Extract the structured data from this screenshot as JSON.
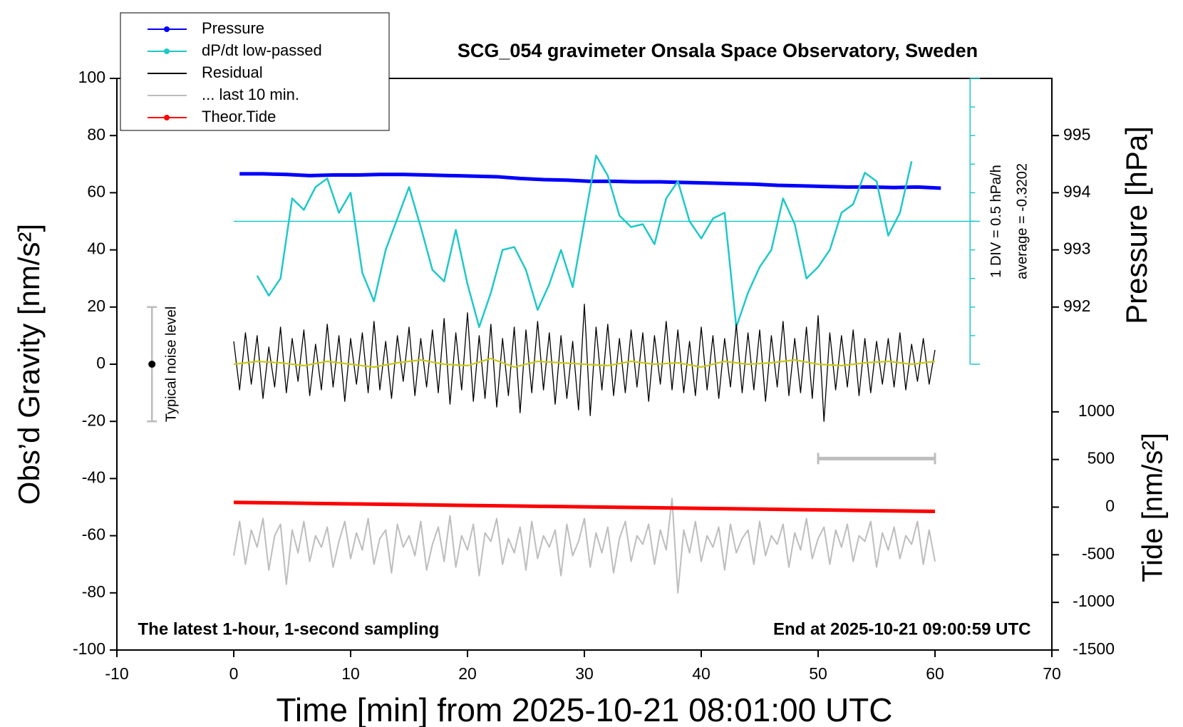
{
  "chart_data": {
    "type": "line",
    "title": "SCG_054 gravimeter Onsala Space Observatory, Sweden",
    "xlabel": "Time [min] from 2025-10-21 08:01:00 UTC",
    "ylabel": "Obs’d Gravity [nm/s²]",
    "y2label": "Pressure [hPa]",
    "y3label": "Tide [nm/s²]",
    "annotations": {
      "left": "The latest 1-hour, 1-second sampling",
      "right": "End at 2025-10-21 09:00:59 UTC",
      "noise": "Typical noise level",
      "div": "1 DIV = 0.5 hPa/h",
      "average": "average = -0.3202"
    },
    "xlim": [
      -10,
      70
    ],
    "xticks": [
      -10,
      0,
      10,
      20,
      30,
      40,
      50,
      60,
      70
    ],
    "ylim": [
      -100,
      100
    ],
    "yticks": [
      -100,
      -80,
      -60,
      -40,
      -20,
      0,
      20,
      40,
      60,
      80,
      100
    ],
    "y2lim": [
      986,
      996
    ],
    "y2ticks": [
      992,
      993,
      994,
      995
    ],
    "y3lim": [
      -1500,
      4500
    ],
    "y3ticks": [
      -1500,
      -1000,
      -500,
      0,
      500,
      1000
    ],
    "legend": "upper left",
    "noise_level": {
      "x": -7,
      "value": 0,
      "error": 20
    },
    "last10_bar": {
      "x": [
        50,
        60
      ],
      "y": -33
    },
    "series": [
      {
        "name": "Pressure",
        "color": "#0000ff",
        "axis": "y2",
        "marker": true,
        "x": [
          0.5,
          2.5,
          4.5,
          6.5,
          8.5,
          10.5,
          12.5,
          14.5,
          16.5,
          18.5,
          20.5,
          22.5,
          24.5,
          26.5,
          28.5,
          30.5,
          32.5,
          34.5,
          36.5,
          38.5,
          40.5,
          42.5,
          44.5,
          46.5,
          48.5,
          50.5,
          52.5,
          54.5,
          56.5,
          58.5,
          60.5
        ],
        "values": [
          994.33,
          994.33,
          994.32,
          994.3,
          994.31,
          994.31,
          994.32,
          994.32,
          994.31,
          994.3,
          994.29,
          994.28,
          994.25,
          994.23,
          994.22,
          994.2,
          994.2,
          994.19,
          994.19,
          994.18,
          994.17,
          994.16,
          994.15,
          994.13,
          994.12,
          994.11,
          994.1,
          994.1,
          994.09,
          994.1,
          994.08
        ]
      },
      {
        "name": "dP/dt low-passed",
        "color": "#1fc8c8",
        "marker": true,
        "x": [
          2,
          3,
          4,
          5,
          6,
          7,
          8,
          9,
          10,
          11,
          12,
          13,
          14,
          15,
          16,
          17,
          18,
          19,
          20,
          21,
          22,
          23,
          24,
          25,
          26,
          27,
          28,
          29,
          30,
          31,
          32,
          33,
          34,
          35,
          36,
          37,
          38,
          39,
          40,
          41,
          42,
          43,
          44,
          45,
          46,
          47,
          48,
          49,
          50,
          51,
          52,
          53,
          54,
          55,
          56,
          57,
          58
        ],
        "values": [
          31,
          24,
          30,
          58,
          54,
          62,
          65,
          53,
          60,
          32,
          22,
          40,
          51,
          62,
          48,
          33,
          29,
          47,
          28,
          13,
          25,
          40,
          41,
          33,
          19,
          28,
          40,
          27,
          50,
          73,
          66,
          52,
          48,
          49,
          42,
          58,
          64,
          50,
          44,
          51,
          53,
          13,
          25,
          34,
          40,
          58,
          49,
          30,
          34,
          40,
          53,
          56,
          67,
          64,
          45,
          53,
          71
        ]
      },
      {
        "name": "Residual",
        "color": "#000000",
        "x": [
          0,
          0.5,
          1,
          1.5,
          2,
          2.5,
          3,
          3.5,
          4,
          4.5,
          5,
          5.5,
          6,
          6.5,
          7,
          7.5,
          8,
          8.5,
          9,
          9.5,
          10,
          10.5,
          11,
          11.5,
          12,
          12.5,
          13,
          13.5,
          14,
          14.5,
          15,
          15.5,
          16,
          16.5,
          17,
          17.5,
          18,
          18.5,
          19,
          19.5,
          20,
          20.5,
          21,
          21.5,
          22,
          22.5,
          23,
          23.5,
          24,
          24.5,
          25,
          25.5,
          26,
          26.5,
          27,
          27.5,
          28,
          28.5,
          29,
          29.5,
          30,
          30.5,
          31,
          31.5,
          32,
          32.5,
          33,
          33.5,
          34,
          34.5,
          35,
          35.5,
          36,
          36.5,
          37,
          37.5,
          38,
          38.5,
          39,
          39.5,
          40,
          40.5,
          41,
          41.5,
          42,
          42.5,
          43,
          43.5,
          44,
          44.5,
          45,
          45.5,
          46,
          46.5,
          47,
          47.5,
          48,
          48.5,
          49,
          49.5,
          50,
          50.5,
          51,
          51.5,
          52,
          52.5,
          53,
          53.5,
          54,
          54.5,
          55,
          55.5,
          56,
          56.5,
          57,
          57.5,
          58,
          58.5,
          59,
          59.5,
          60
        ],
        "values": [
          8,
          -9,
          11,
          -7,
          10,
          -12,
          6,
          -8,
          13,
          -10,
          9,
          -6,
          12,
          -11,
          7,
          -9,
          14,
          -8,
          10,
          -13,
          9,
          -7,
          11,
          -10,
          15,
          -9,
          8,
          -12,
          10,
          -6,
          13,
          -11,
          9,
          -8,
          12,
          -10,
          16,
          -14,
          11,
          -9,
          18,
          -13,
          10,
          -12,
          14,
          -15,
          9,
          -11,
          13,
          -17,
          12,
          -10,
          15,
          -9,
          11,
          -14,
          10,
          -12,
          8,
          -16,
          21,
          -18,
          13,
          -9,
          14,
          -11,
          9,
          -10,
          12,
          -8,
          11,
          -13,
          10,
          -7,
          15,
          -9,
          12,
          -10,
          8,
          -11,
          13,
          -9,
          10,
          -12,
          9,
          -8,
          14,
          -10,
          11,
          -9,
          12,
          -13,
          10,
          -8,
          15,
          -11,
          9,
          -10,
          13,
          -12,
          17,
          -20,
          11,
          -9,
          10,
          -8,
          12,
          -11,
          9,
          -10,
          8,
          -7,
          9,
          -8,
          11,
          -9,
          7,
          -6,
          9,
          -7,
          5
        ]
      },
      {
        "color": "#c8c81e",
        "x": [
          0,
          2,
          4,
          6,
          8,
          10,
          12,
          14,
          16,
          18,
          20,
          22,
          24,
          26,
          28,
          30,
          32,
          34,
          36,
          38,
          40,
          42,
          44,
          46,
          48,
          50,
          52,
          54,
          56,
          58,
          60
        ],
        "values": [
          0,
          1,
          0.5,
          -0.5,
          1,
          0,
          -1,
          0.5,
          1.5,
          0,
          -0.5,
          2,
          -1,
          1,
          0.5,
          0,
          -0.5,
          1,
          0,
          0.5,
          -1,
          1,
          0,
          0.5,
          1.5,
          0,
          -0.5,
          0.5,
          1,
          0,
          1
        ]
      },
      {
        "name": "... last 10 min.",
        "color": "#bdbdbd",
        "x": [
          0,
          0.5,
          1,
          1.5,
          2,
          2.5,
          3,
          3.5,
          4,
          4.5,
          5,
          5.5,
          6,
          6.5,
          7,
          7.5,
          8,
          8.5,
          9,
          9.5,
          10,
          10.5,
          11,
          11.5,
          12,
          12.5,
          13,
          13.5,
          14,
          14.5,
          15,
          15.5,
          16,
          16.5,
          17,
          17.5,
          18,
          18.5,
          19,
          19.5,
          20,
          20.5,
          21,
          21.5,
          22,
          22.5,
          23,
          23.5,
          24,
          24.5,
          25,
          25.5,
          26,
          26.5,
          27,
          27.5,
          28,
          28.5,
          29,
          29.5,
          30,
          30.5,
          31,
          31.5,
          32,
          32.5,
          33,
          33.5,
          34,
          34.5,
          35,
          35.5,
          36,
          36.5,
          37,
          37.5,
          38,
          38.5,
          39,
          39.5,
          40,
          40.5,
          41,
          41.5,
          42,
          42.5,
          43,
          43.5,
          44,
          44.5,
          45,
          45.5,
          46,
          46.5,
          47,
          47.5,
          48,
          48.5,
          49,
          49.5,
          50,
          50.5,
          51,
          51.5,
          52,
          52.5,
          53,
          53.5,
          54,
          54.5,
          55,
          55.5,
          56,
          56.5,
          57,
          57.5,
          58,
          58.5,
          59,
          59.5,
          60
        ],
        "values": [
          -67,
          -55,
          -70,
          -58,
          -64,
          -54,
          -72,
          -60,
          -56,
          -77,
          -58,
          -66,
          -55,
          -69,
          -60,
          -64,
          -57,
          -71,
          -62,
          -55,
          -68,
          -59,
          -65,
          -54,
          -70,
          -61,
          -58,
          -73,
          -56,
          -64,
          -60,
          -67,
          -55,
          -72,
          -63,
          -57,
          -69,
          -53,
          -71,
          -60,
          -65,
          -56,
          -74,
          -59,
          -62,
          -54,
          -70,
          -61,
          -66,
          -57,
          -72,
          -55,
          -68,
          -60,
          -64,
          -58,
          -74,
          -56,
          -67,
          -62,
          -54,
          -71,
          -59,
          -66,
          -57,
          -73,
          -61,
          -55,
          -69,
          -60,
          -63,
          -56,
          -70,
          -58,
          -65,
          -47,
          -80,
          -58,
          -66,
          -55,
          -69,
          -60,
          -64,
          -57,
          -72,
          -56,
          -66,
          -61,
          -58,
          -70,
          -55,
          -67,
          -60,
          -63,
          -56,
          -71,
          -59,
          -65,
          -54,
          -68,
          -61,
          -57,
          -70,
          -58,
          -64,
          -56,
          -69,
          -60,
          -62,
          -55,
          -71,
          -59,
          -65,
          -57,
          -68,
          -60,
          -63,
          -55,
          -70,
          -58,
          -69
        ]
      },
      {
        "name": "Theor.Tide",
        "color": "#ff0000",
        "axis": "y3",
        "marker": true,
        "x": [
          0,
          5,
          10,
          15,
          20,
          25,
          30,
          35,
          40,
          45,
          50,
          55,
          60
        ],
        "values": [
          50,
          42,
          34,
          26,
          18,
          10,
          3,
          -5,
          -13,
          -21,
          -29,
          -37,
          -45
        ]
      }
    ]
  }
}
